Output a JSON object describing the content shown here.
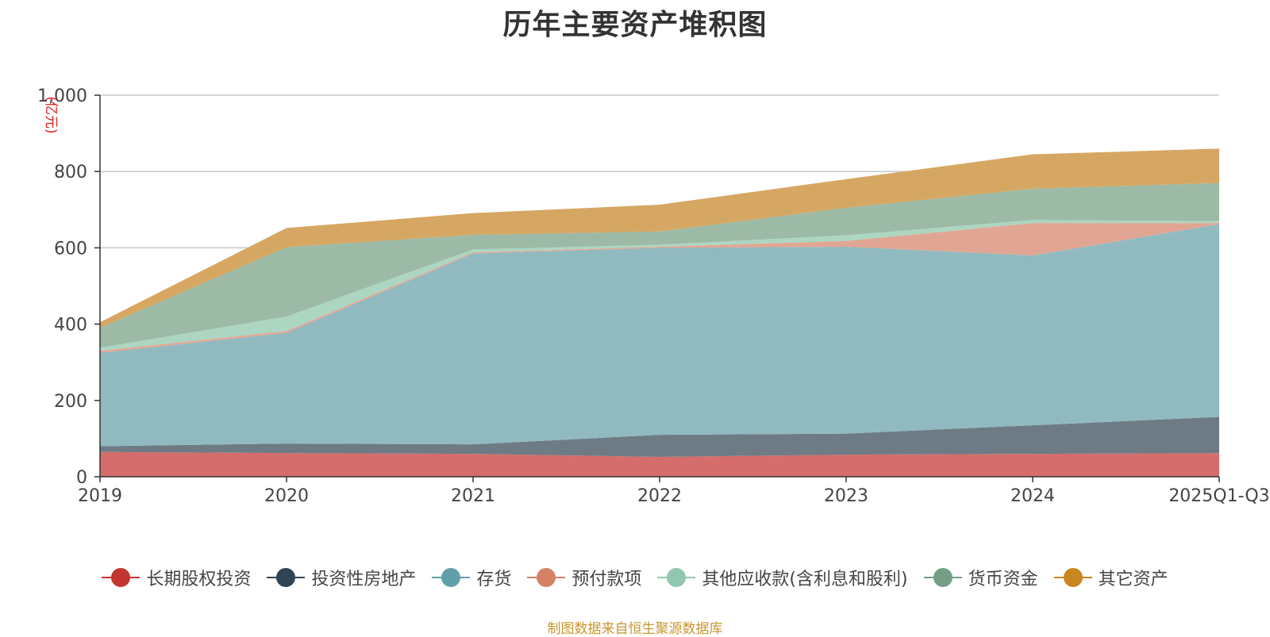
{
  "chart_data": {
    "type": "area",
    "stacked": true,
    "title": "历年主要资产堆积图",
    "unit_label": "(亿元)",
    "categories": [
      "2019",
      "2020",
      "2021",
      "2022",
      "2023",
      "2024",
      "2025Q1-Q3"
    ],
    "ylim": [
      0,
      1000
    ],
    "yticks": [
      0,
      200,
      400,
      600,
      800,
      1000
    ],
    "ytick_labels": [
      "0",
      "200",
      "400",
      "600",
      "800",
      "1,000"
    ],
    "grid": true,
    "legend_position": "bottom",
    "series": [
      {
        "name": "长期股权投资",
        "color": "#c23531",
        "fill": "#d46d6b",
        "values": [
          65,
          62,
          60,
          52,
          58,
          60,
          62
        ]
      },
      {
        "name": "投资性房地产",
        "color": "#2f4554",
        "fill": "#6e7b85",
        "values": [
          15,
          25,
          25,
          58,
          55,
          75,
          95
        ]
      },
      {
        "name": "存货",
        "color": "#61a0a8",
        "fill": "#90bac0",
        "values": [
          245,
          290,
          500,
          490,
          490,
          445,
          505
        ]
      },
      {
        "name": "预付款项",
        "color": "#d48265",
        "fill": "#e1a693",
        "values": [
          5,
          5,
          3,
          3,
          15,
          85,
          3
        ]
      },
      {
        "name": "其他应收款(含利息和股利)",
        "color": "#91c7ae",
        "fill": "#acd6c2",
        "values": [
          8,
          38,
          8,
          5,
          15,
          8,
          5
        ]
      },
      {
        "name": "货币资金",
        "color": "#749f83",
        "fill": "#9cbaa5",
        "values": [
          52,
          182,
          38,
          35,
          72,
          82,
          100
        ]
      },
      {
        "name": "其它资产",
        "color": "#ca8622",
        "fill": "#d6a763",
        "values": [
          15,
          50,
          57,
          70,
          75,
          90,
          90
        ]
      }
    ]
  },
  "source_note": "制图数据来自恒生聚源数据库"
}
